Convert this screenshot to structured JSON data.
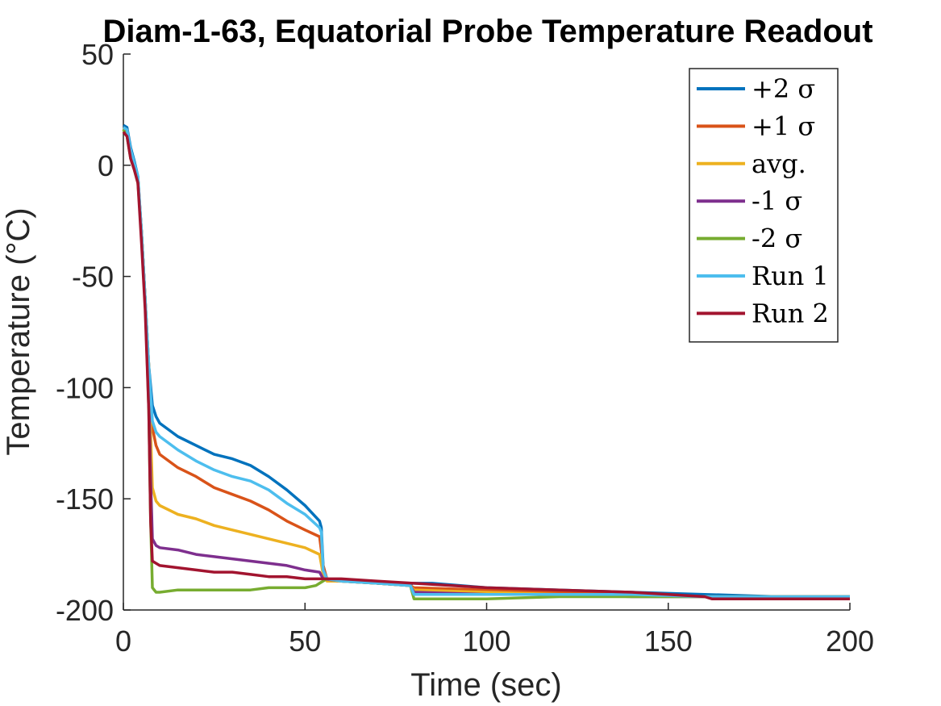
{
  "chart_data": {
    "type": "line",
    "title": "Diam-1-63, Equatorial Probe Temperature Readout",
    "xlabel": "Time (sec)",
    "ylabel": "Temperature (°C)",
    "xlim": [
      0,
      200
    ],
    "ylim": [
      -200,
      50
    ],
    "x_ticks": [
      0,
      50,
      100,
      150,
      200
    ],
    "y_ticks": [
      50,
      0,
      -50,
      -100,
      -150,
      -200
    ],
    "grid": false,
    "legend_position": "top-right",
    "series": [
      {
        "name": "+2 σ",
        "color": "#0072BD",
        "points": [
          [
            0,
            18
          ],
          [
            1,
            17
          ],
          [
            2,
            8
          ],
          [
            3,
            2
          ],
          [
            4,
            -5
          ],
          [
            5,
            -30
          ],
          [
            6,
            -60
          ],
          [
            7,
            -90
          ],
          [
            8,
            -108
          ],
          [
            9,
            -113
          ],
          [
            10,
            -116
          ],
          [
            15,
            -122
          ],
          [
            20,
            -126
          ],
          [
            25,
            -130
          ],
          [
            30,
            -132
          ],
          [
            35,
            -135
          ],
          [
            40,
            -140
          ],
          [
            45,
            -146
          ],
          [
            50,
            -153
          ],
          [
            54,
            -160
          ],
          [
            54.5,
            -163
          ],
          [
            55,
            -180
          ],
          [
            56,
            -186
          ],
          [
            60,
            -187
          ],
          [
            65,
            -187
          ],
          [
            70,
            -188
          ],
          [
            75,
            -188
          ],
          [
            79,
            -189
          ],
          [
            79.5,
            -188
          ],
          [
            85,
            -188
          ],
          [
            100,
            -190
          ],
          [
            120,
            -191
          ],
          [
            140,
            -192
          ],
          [
            160,
            -193
          ],
          [
            180,
            -194
          ],
          [
            200,
            -194
          ]
        ]
      },
      {
        "name": "+1 σ",
        "color": "#D95319",
        "points": [
          [
            0,
            17
          ],
          [
            1,
            16
          ],
          [
            2,
            6
          ],
          [
            3,
            1
          ],
          [
            4,
            -6
          ],
          [
            5,
            -30
          ],
          [
            6,
            -60
          ],
          [
            7,
            -90
          ],
          [
            8,
            -118
          ],
          [
            9,
            -126
          ],
          [
            10,
            -130
          ],
          [
            15,
            -136
          ],
          [
            20,
            -140
          ],
          [
            25,
            -145
          ],
          [
            30,
            -148
          ],
          [
            35,
            -151
          ],
          [
            40,
            -155
          ],
          [
            45,
            -160
          ],
          [
            50,
            -164
          ],
          [
            54,
            -167
          ],
          [
            55,
            -180
          ],
          [
            56,
            -186
          ],
          [
            60,
            -187
          ],
          [
            70,
            -188
          ],
          [
            79,
            -189
          ],
          [
            80,
            -190
          ],
          [
            100,
            -191
          ],
          [
            120,
            -192
          ],
          [
            140,
            -193
          ],
          [
            160,
            -194
          ],
          [
            180,
            -194
          ],
          [
            200,
            -194
          ]
        ]
      },
      {
        "name": "avg.",
        "color": "#EDB120",
        "points": [
          [
            0,
            17
          ],
          [
            1,
            15
          ],
          [
            2,
            5
          ],
          [
            3,
            0
          ],
          [
            4,
            -6
          ],
          [
            5,
            -30
          ],
          [
            6,
            -60
          ],
          [
            7,
            -90
          ],
          [
            7.5,
            -120
          ],
          [
            8,
            -145
          ],
          [
            9,
            -151
          ],
          [
            10,
            -153
          ],
          [
            15,
            -157
          ],
          [
            20,
            -159
          ],
          [
            25,
            -162
          ],
          [
            30,
            -164
          ],
          [
            35,
            -166
          ],
          [
            40,
            -168
          ],
          [
            45,
            -170
          ],
          [
            50,
            -172
          ],
          [
            54,
            -175
          ],
          [
            55,
            -184
          ],
          [
            56,
            -187
          ],
          [
            60,
            -187
          ],
          [
            70,
            -188
          ],
          [
            79,
            -189
          ],
          [
            80,
            -191
          ],
          [
            100,
            -192
          ],
          [
            120,
            -193
          ],
          [
            140,
            -193
          ],
          [
            160,
            -194
          ],
          [
            180,
            -194
          ],
          [
            200,
            -194
          ]
        ]
      },
      {
        "name": "-1 σ",
        "color": "#7E2F8E",
        "points": [
          [
            0,
            16
          ],
          [
            1,
            14
          ],
          [
            2,
            4
          ],
          [
            3,
            -1
          ],
          [
            4,
            -7
          ],
          [
            5,
            -30
          ],
          [
            6,
            -60
          ],
          [
            7,
            -100
          ],
          [
            7.5,
            -140
          ],
          [
            8,
            -168
          ],
          [
            9,
            -171
          ],
          [
            10,
            -172
          ],
          [
            15,
            -173
          ],
          [
            20,
            -175
          ],
          [
            25,
            -176
          ],
          [
            30,
            -177
          ],
          [
            35,
            -178
          ],
          [
            40,
            -179
          ],
          [
            45,
            -180
          ],
          [
            50,
            -182
          ],
          [
            54,
            -183
          ],
          [
            55,
            -186
          ],
          [
            60,
            -187
          ],
          [
            70,
            -188
          ],
          [
            79,
            -189
          ],
          [
            80,
            -192
          ],
          [
            100,
            -193
          ],
          [
            120,
            -193
          ],
          [
            140,
            -194
          ],
          [
            160,
            -194
          ],
          [
            180,
            -194
          ],
          [
            200,
            -194
          ]
        ]
      },
      {
        "name": "-2 σ",
        "color": "#77AC30",
        "points": [
          [
            0,
            16
          ],
          [
            1,
            13
          ],
          [
            2,
            3
          ],
          [
            3,
            -2
          ],
          [
            4,
            -8
          ],
          [
            5,
            -30
          ],
          [
            6,
            -60
          ],
          [
            7,
            -110
          ],
          [
            7.5,
            -160
          ],
          [
            8,
            -190
          ],
          [
            9,
            -192
          ],
          [
            10,
            -192
          ],
          [
            15,
            -191
          ],
          [
            20,
            -191
          ],
          [
            25,
            -191
          ],
          [
            30,
            -191
          ],
          [
            35,
            -191
          ],
          [
            40,
            -190
          ],
          [
            45,
            -190
          ],
          [
            50,
            -190
          ],
          [
            53,
            -189
          ],
          [
            54,
            -188
          ],
          [
            56,
            -186
          ],
          [
            60,
            -187
          ],
          [
            70,
            -188
          ],
          [
            79,
            -189
          ],
          [
            80,
            -195
          ],
          [
            100,
            -195
          ],
          [
            120,
            -194
          ],
          [
            140,
            -194
          ],
          [
            160,
            -194
          ],
          [
            180,
            -194
          ],
          [
            200,
            -194
          ]
        ]
      },
      {
        "name": "Run 1",
        "color": "#4DBEEE",
        "points": [
          [
            0,
            17
          ],
          [
            1,
            16
          ],
          [
            2,
            7
          ],
          [
            3,
            1
          ],
          [
            4,
            -5
          ],
          [
            5,
            -30
          ],
          [
            6,
            -60
          ],
          [
            7,
            -90
          ],
          [
            8,
            -115
          ],
          [
            9,
            -120
          ],
          [
            10,
            -122
          ],
          [
            15,
            -128
          ],
          [
            20,
            -133
          ],
          [
            25,
            -137
          ],
          [
            30,
            -140
          ],
          [
            35,
            -142
          ],
          [
            40,
            -146
          ],
          [
            45,
            -152
          ],
          [
            50,
            -157
          ],
          [
            54,
            -163
          ],
          [
            54.5,
            -165
          ],
          [
            55,
            -182
          ],
          [
            56,
            -186
          ],
          [
            60,
            -187
          ],
          [
            70,
            -188
          ],
          [
            79,
            -189
          ],
          [
            80,
            -193
          ],
          [
            100,
            -193
          ],
          [
            120,
            -193
          ],
          [
            140,
            -193
          ],
          [
            160,
            -194
          ],
          [
            180,
            -194
          ],
          [
            200,
            -194
          ]
        ]
      },
      {
        "name": "Run 2",
        "color": "#A2142F",
        "points": [
          [
            0,
            15
          ],
          [
            1,
            13
          ],
          [
            2,
            3
          ],
          [
            3,
            -2
          ],
          [
            4,
            -8
          ],
          [
            5,
            -35
          ],
          [
            6,
            -65
          ],
          [
            7,
            -110
          ],
          [
            7.5,
            -160
          ],
          [
            8,
            -178
          ],
          [
            9,
            -179
          ],
          [
            10,
            -180
          ],
          [
            15,
            -181
          ],
          [
            20,
            -182
          ],
          [
            25,
            -183
          ],
          [
            30,
            -183
          ],
          [
            35,
            -184
          ],
          [
            40,
            -185
          ],
          [
            45,
            -185
          ],
          [
            50,
            -186
          ],
          [
            55,
            -186
          ],
          [
            60,
            -186
          ],
          [
            70,
            -187
          ],
          [
            80,
            -188
          ],
          [
            100,
            -190
          ],
          [
            120,
            -191
          ],
          [
            140,
            -192
          ],
          [
            150,
            -193
          ],
          [
            160,
            -194
          ],
          [
            162,
            -195
          ],
          [
            180,
            -195
          ],
          [
            200,
            -195
          ]
        ]
      }
    ]
  }
}
